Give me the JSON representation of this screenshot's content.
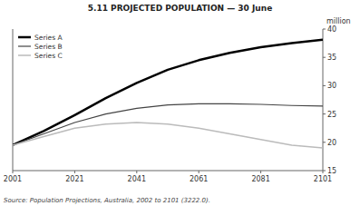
{
  "chart_data": {
    "type": "line",
    "title": "5.11   PROJECTED POPULATION — 30 June",
    "ylabel": "million",
    "source": "Source: Population Projections, Australia, 2002 to 2101 (3222.0).",
    "x": [
      2001,
      2011,
      2021,
      2031,
      2041,
      2051,
      2061,
      2071,
      2081,
      2091,
      2101
    ],
    "series": [
      {
        "name": "Series A",
        "color": "#000000",
        "values": [
          19.5,
          22.0,
          24.8,
          27.8,
          30.5,
          32.8,
          34.5,
          35.8,
          36.8,
          37.5,
          38.1
        ]
      },
      {
        "name": "Series B",
        "color": "#444444",
        "values": [
          19.5,
          21.5,
          23.5,
          25.0,
          26.0,
          26.6,
          26.8,
          26.8,
          26.7,
          26.5,
          26.4
        ]
      },
      {
        "name": "Series C",
        "color": "#bbbbbb",
        "values": [
          19.5,
          21.0,
          22.5,
          23.2,
          23.5,
          23.2,
          22.5,
          21.5,
          20.5,
          19.5,
          19.0
        ]
      }
    ],
    "xlim": [
      2001,
      2101
    ],
    "xticks": [
      2001,
      2021,
      2041,
      2061,
      2081,
      2101
    ],
    "ylim": [
      15,
      40
    ],
    "yticks": [
      15,
      20,
      25,
      30,
      35,
      40
    ],
    "grid": false,
    "legend": "upper left"
  }
}
